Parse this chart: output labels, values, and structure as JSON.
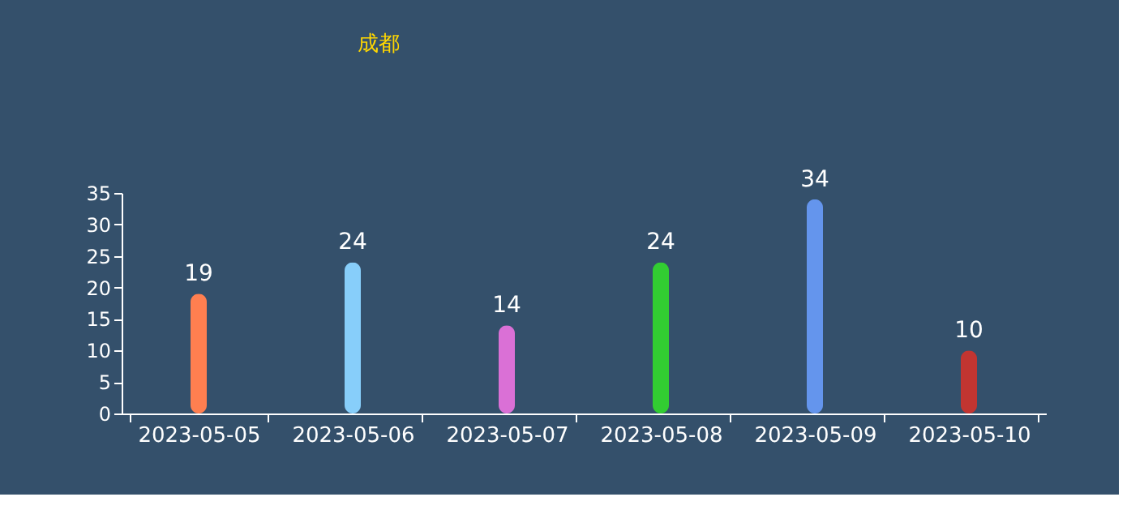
{
  "chart_data": {
    "type": "bar",
    "title": "成都",
    "categories": [
      "2023-05-05",
      "2023-05-06",
      "2023-05-07",
      "2023-05-08",
      "2023-05-09",
      "2023-05-10"
    ],
    "values": [
      19,
      24,
      14,
      24,
      34,
      10
    ],
    "colors": [
      "#ff7f50",
      "#87cefa",
      "#da70d6",
      "#32cd32",
      "#6495ed",
      "#c23531"
    ],
    "ylim": [
      0,
      35
    ],
    "yticks": [
      0,
      5,
      10,
      15,
      20,
      25,
      30,
      35
    ],
    "grid": false,
    "data_labels": true
  }
}
